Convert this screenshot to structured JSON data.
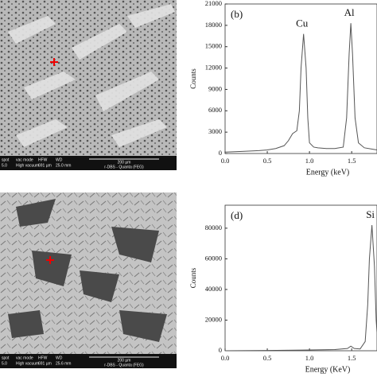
{
  "chart_data": [
    {
      "type": "line",
      "panel_label": "(b)",
      "ylabel": "Counts",
      "xlabel": "Energy (keV)",
      "x": [
        0.0,
        0.2,
        0.4,
        0.5,
        0.6,
        0.7,
        0.75,
        0.8,
        0.85,
        0.88,
        0.9,
        0.93,
        0.96,
        0.98,
        1.0,
        1.05,
        1.1,
        1.2,
        1.3,
        1.4,
        1.44,
        1.47,
        1.49,
        1.51,
        1.54,
        1.58,
        1.65,
        1.75,
        1.8
      ],
      "series": [
        {
          "color": "#555555",
          "values": [
            200,
            300,
            400,
            500,
            700,
            1100,
            1800,
            2800,
            3200,
            6000,
            12000,
            16800,
            12000,
            5000,
            1500,
            900,
            800,
            700,
            700,
            900,
            5000,
            14000,
            18300,
            14000,
            5000,
            1500,
            800,
            600,
            500
          ]
        }
      ],
      "peak_labels": [
        "Cu",
        "Al"
      ],
      "xlim": [
        0,
        1.8
      ],
      "xticks": [
        {
          "value": 0,
          "label": "0.0"
        },
        0.5,
        {
          "value": 1,
          "label": "1.0"
        },
        1.5
      ],
      "ylim": [
        0,
        21000
      ],
      "yticks": [
        0,
        3000,
        6000,
        9000,
        12000,
        15000,
        18000,
        21000
      ]
    },
    {
      "type": "line",
      "panel_label": "(d)",
      "ylabel": "Counts",
      "xlabel": "Energy (KeV)",
      "x": [
        0.0,
        0.5,
        1.0,
        1.3,
        1.45,
        1.49,
        1.53,
        1.6,
        1.66,
        1.69,
        1.71,
        1.74,
        1.77,
        1.79,
        1.8
      ],
      "series": [
        {
          "color": "#555555",
          "values": [
            0,
            200,
            500,
            800,
            1500,
            3000,
            1500,
            1200,
            6000,
            30000,
            60000,
            82000,
            55000,
            20000,
            12000
          ]
        }
      ],
      "peak_labels": [
        "Si"
      ],
      "xlim": [
        0,
        1.8
      ],
      "xticks": [
        {
          "value": 0,
          "label": "0.0"
        },
        0.5,
        {
          "value": 1,
          "label": "1.0"
        },
        1.5
      ],
      "ylim": [
        0,
        95000
      ],
      "yticks": [
        0,
        20000,
        40000,
        60000,
        80000
      ]
    }
  ],
  "sem_images": [
    {
      "info": [
        [
          "spot",
          "5.0"
        ],
        [
          "vac mode",
          "High vacuum"
        ],
        [
          "HFW",
          "691 µm"
        ],
        [
          "WD",
          "25.0 mm"
        ]
      ],
      "scale": "200 µm",
      "detector": "r-DBS - Quanta (FEG)"
    },
    {
      "info": [
        [
          "spot",
          "5.0"
        ],
        [
          "vac mode",
          "High vacuum"
        ],
        [
          "HFW",
          "691 µm"
        ],
        [
          "WD",
          "25.6 mm"
        ]
      ],
      "scale": "200 µm",
      "detector": "r-DBS - Quanta (FEG)"
    }
  ]
}
